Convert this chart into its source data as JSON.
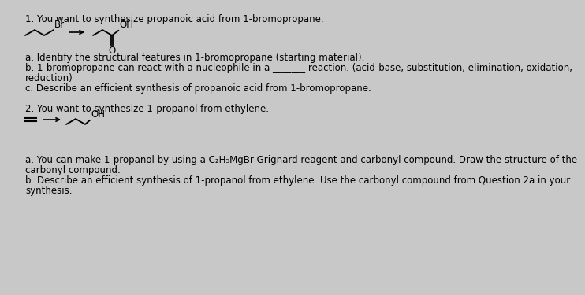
{
  "background_color": "#c8c8c8",
  "inner_bg": "#ffffff",
  "title1": "1. You want to synthesize propanoic acid from 1-bromopropane.",
  "q1a": "a. Identify the structural features in 1-bromopropane (starting material).",
  "q1b": "b. 1-bromopropane can react with a nucleophile in a _______ reaction. (acid-base, substitution, elimination, oxidation,",
  "q1b2": "reduction)",
  "q1c": "c. Describe an efficient synthesis of propanoic acid from 1-bromopropane.",
  "title2": "2. You want to synthesize 1-propanol from ethylene.",
  "q2a": "a. You can make 1-propanol by using a C₂H₅MgBr Grignard reagent and carbonyl compound. Draw the structure of the",
  "q2a2": "carbonyl compound.",
  "q2b": "b. Describe an efficient synthesis of 1-propanol from ethylene. Use the carbonyl compound from Question 2a in your",
  "q2b2": "synthesis.",
  "font_size": 8.5,
  "text_color": "#000000",
  "lw": 1.3
}
